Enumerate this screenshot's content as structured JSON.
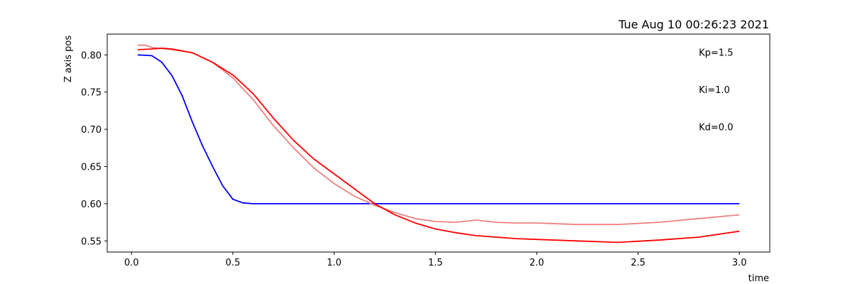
{
  "chart_data": {
    "type": "line",
    "title": "Tue Aug 10 00:26:23 2021",
    "xlabel": "time",
    "ylabel": "Z axis pos",
    "xlim": [
      -0.12,
      3.15
    ],
    "ylim": [
      0.535,
      0.828
    ],
    "xticks": [
      0.0,
      0.5,
      1.0,
      1.5,
      2.0,
      2.5,
      3.0
    ],
    "xtick_labels": [
      "0.0",
      "0.5",
      "1.0",
      "1.5",
      "2.0",
      "2.5",
      "3.0"
    ],
    "yticks": [
      0.55,
      0.6,
      0.65,
      0.7,
      0.75,
      0.8
    ],
    "ytick_labels": [
      "0.55",
      "0.60",
      "0.65",
      "0.70",
      "0.75",
      "0.80"
    ],
    "grid": false,
    "annotations": [
      {
        "text": "Kp=1.5",
        "x": 2.8,
        "y": 0.802
      },
      {
        "text": "Ki=1.0",
        "x": 2.8,
        "y": 0.752
      },
      {
        "text": "Kd=0.0",
        "x": 2.8,
        "y": 0.702
      }
    ],
    "series": [
      {
        "color": "#0000ff",
        "x": [
          0.03,
          0.1,
          0.15,
          0.2,
          0.25,
          0.3,
          0.35,
          0.4,
          0.45,
          0.5,
          0.55,
          0.6,
          1.0,
          1.5,
          2.0,
          2.5,
          3.0
        ],
        "y": [
          0.8,
          0.799,
          0.79,
          0.772,
          0.745,
          0.71,
          0.678,
          0.65,
          0.624,
          0.606,
          0.601,
          0.6,
          0.6,
          0.6,
          0.6,
          0.6,
          0.6
        ]
      },
      {
        "color": "#f08080",
        "x": [
          0.03,
          0.07,
          0.1,
          0.2,
          0.3,
          0.4,
          0.5,
          0.6,
          0.7,
          0.8,
          0.9,
          1.0,
          1.1,
          1.2,
          1.3,
          1.4,
          1.5,
          1.6,
          1.7,
          1.8,
          1.9,
          2.0,
          2.2,
          2.4,
          2.6,
          2.8,
          3.0
        ],
        "y": [
          0.813,
          0.813,
          0.81,
          0.807,
          0.803,
          0.79,
          0.769,
          0.74,
          0.705,
          0.675,
          0.648,
          0.627,
          0.61,
          0.598,
          0.588,
          0.58,
          0.576,
          0.575,
          0.578,
          0.575,
          0.574,
          0.574,
          0.572,
          0.572,
          0.575,
          0.58,
          0.585
        ]
      },
      {
        "color": "#ff0000",
        "x": [
          0.03,
          0.1,
          0.15,
          0.2,
          0.3,
          0.4,
          0.5,
          0.6,
          0.7,
          0.8,
          0.9,
          1.0,
          1.1,
          1.2,
          1.3,
          1.4,
          1.5,
          1.6,
          1.7,
          1.8,
          1.9,
          2.0,
          2.2,
          2.4,
          2.6,
          2.8,
          3.0
        ],
        "y": [
          0.807,
          0.808,
          0.809,
          0.808,
          0.803,
          0.79,
          0.773,
          0.748,
          0.715,
          0.685,
          0.66,
          0.64,
          0.62,
          0.6,
          0.585,
          0.574,
          0.566,
          0.561,
          0.557,
          0.555,
          0.553,
          0.552,
          0.55,
          0.548,
          0.551,
          0.555,
          0.563
        ]
      }
    ]
  }
}
